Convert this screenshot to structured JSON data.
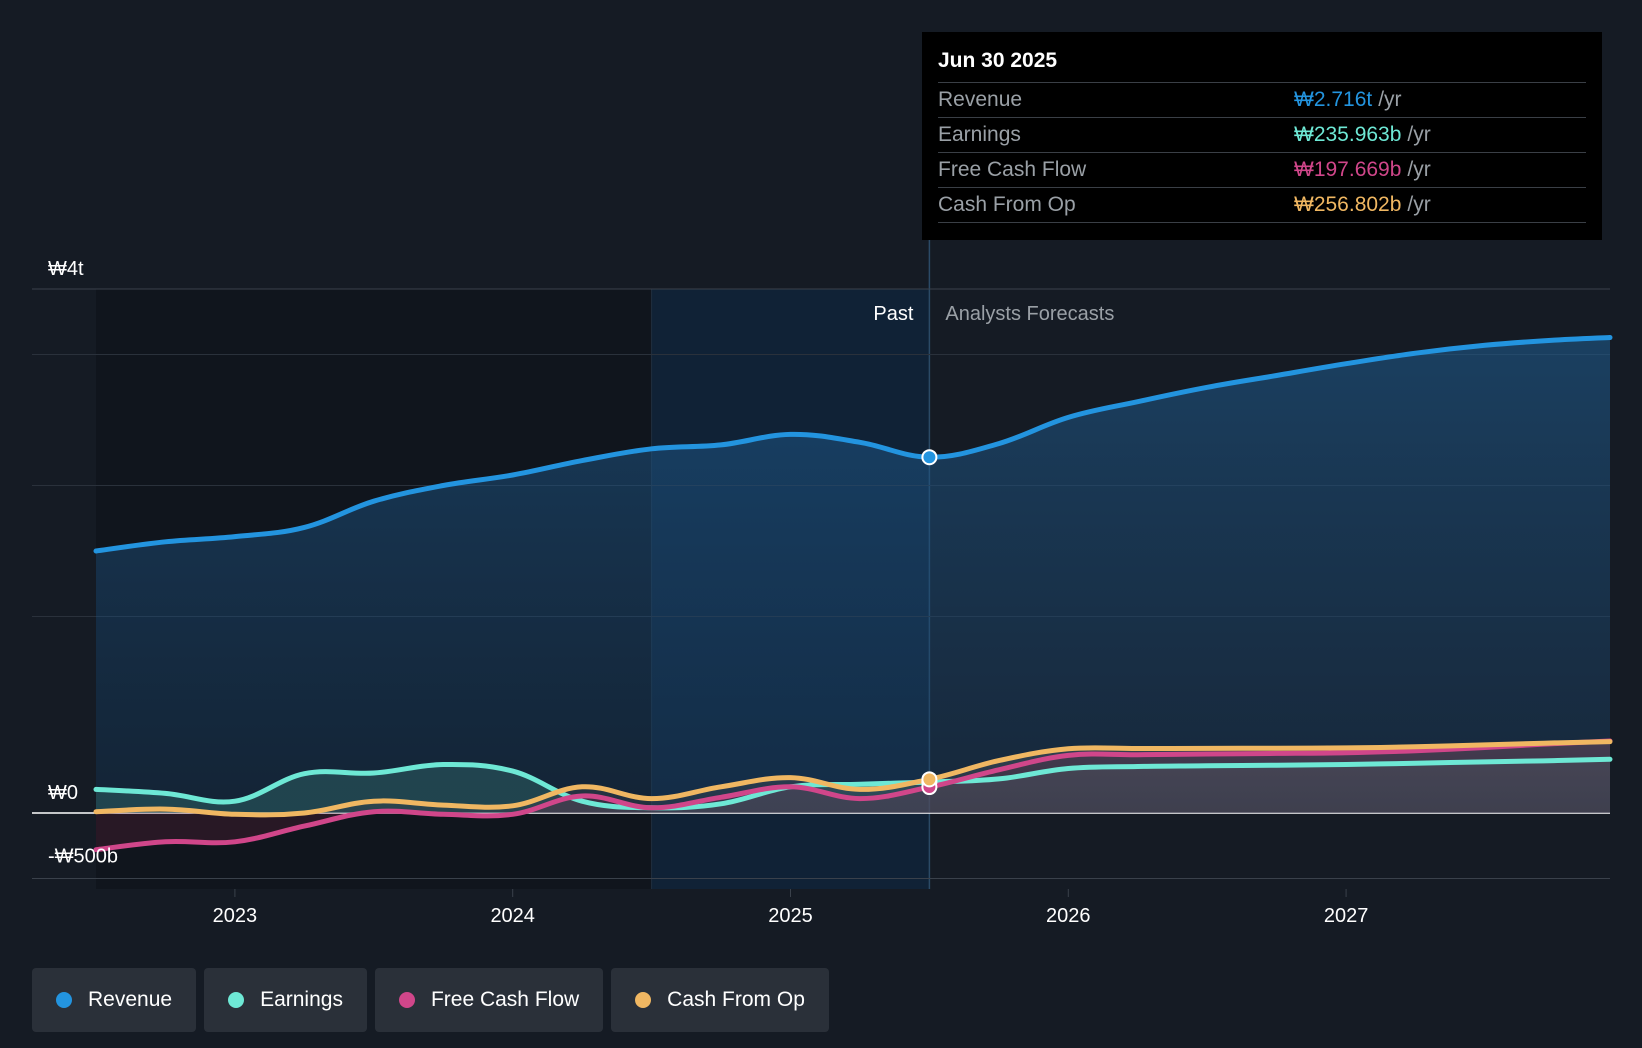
{
  "colors": {
    "revenue": "#2394df",
    "earnings": "#6ee8d5",
    "fcf": "#d0468a",
    "cfo": "#f0b762",
    "background": "#151b24"
  },
  "tooltip": {
    "date": "Jun 30 2025",
    "rows": [
      {
        "name": "Revenue",
        "value": "₩2.716t",
        "unit": "/yr"
      },
      {
        "name": "Earnings",
        "value": "₩235.963b",
        "unit": "/yr"
      },
      {
        "name": "Free Cash Flow",
        "value": "₩197.669b",
        "unit": "/yr"
      },
      {
        "name": "Cash From Op",
        "value": "₩256.802b",
        "unit": "/yr"
      }
    ]
  },
  "legend": [
    {
      "label": "Revenue",
      "color": "#2394df"
    },
    {
      "label": "Earnings",
      "color": "#6ee8d5"
    },
    {
      "label": "Free Cash Flow",
      "color": "#d0468a"
    },
    {
      "label": "Cash From Op",
      "color": "#f0b762"
    }
  ],
  "chart_data": {
    "type": "area",
    "title": "",
    "xlabel": "",
    "ylabel": "",
    "x_range": [
      2022.5,
      2027.95
    ],
    "y_range": [
      -500,
      4000
    ],
    "y_tick_labels": [
      {
        "value": 4000,
        "label": "₩4t"
      },
      {
        "value": 0,
        "label": "₩0"
      },
      {
        "value": -500,
        "label": "-₩500b"
      }
    ],
    "gridlines": [
      3500,
      2500,
      1500
    ],
    "x_ticks": [
      {
        "value": 2023,
        "label": "2023"
      },
      {
        "value": 2024,
        "label": "2024"
      },
      {
        "value": 2025,
        "label": "2025"
      },
      {
        "value": 2026,
        "label": "2026"
      },
      {
        "value": 2027,
        "label": "2027"
      }
    ],
    "past_label": "Past",
    "forecast_label": "Analysts Forecasts",
    "past_highlight_start": 2024.5,
    "divider_x": 2025.5,
    "series": [
      {
        "key": "revenue",
        "name": "Revenue",
        "points": [
          [
            2022.5,
            2000
          ],
          [
            2022.75,
            2070
          ],
          [
            2023.0,
            2110
          ],
          [
            2023.25,
            2180
          ],
          [
            2023.5,
            2380
          ],
          [
            2023.75,
            2500
          ],
          [
            2024.0,
            2580
          ],
          [
            2024.25,
            2690
          ],
          [
            2024.5,
            2780
          ],
          [
            2024.75,
            2810
          ],
          [
            2025.0,
            2890
          ],
          [
            2025.25,
            2830
          ],
          [
            2025.5,
            2716
          ],
          [
            2025.75,
            2820
          ],
          [
            2026.0,
            3020
          ],
          [
            2026.25,
            3140
          ],
          [
            2026.5,
            3250
          ],
          [
            2026.75,
            3340
          ],
          [
            2027.0,
            3430
          ],
          [
            2027.25,
            3510
          ],
          [
            2027.5,
            3570
          ],
          [
            2027.75,
            3610
          ],
          [
            2027.95,
            3630
          ]
        ]
      },
      {
        "key": "earnings",
        "name": "Earnings",
        "points": [
          [
            2022.5,
            180
          ],
          [
            2022.75,
            150
          ],
          [
            2023.0,
            90
          ],
          [
            2023.25,
            300
          ],
          [
            2023.5,
            305
          ],
          [
            2023.75,
            370
          ],
          [
            2024.0,
            320
          ],
          [
            2024.25,
            90
          ],
          [
            2024.5,
            40
          ],
          [
            2024.75,
            70
          ],
          [
            2025.0,
            200
          ],
          [
            2025.25,
            220
          ],
          [
            2025.5,
            236
          ],
          [
            2025.75,
            260
          ],
          [
            2026.0,
            340
          ],
          [
            2026.25,
            355
          ],
          [
            2026.5,
            360
          ],
          [
            2026.75,
            365
          ],
          [
            2027.0,
            370
          ],
          [
            2027.25,
            380
          ],
          [
            2027.5,
            390
          ],
          [
            2027.75,
            400
          ],
          [
            2027.95,
            410
          ]
        ]
      },
      {
        "key": "fcf",
        "name": "Free Cash Flow",
        "points": [
          [
            2022.5,
            -280
          ],
          [
            2022.75,
            -220
          ],
          [
            2023.0,
            -220
          ],
          [
            2023.25,
            -100
          ],
          [
            2023.5,
            10
          ],
          [
            2023.75,
            -10
          ],
          [
            2024.0,
            -10
          ],
          [
            2024.25,
            130
          ],
          [
            2024.5,
            40
          ],
          [
            2024.75,
            120
          ],
          [
            2025.0,
            200
          ],
          [
            2025.25,
            110
          ],
          [
            2025.5,
            198
          ],
          [
            2025.75,
            330
          ],
          [
            2026.0,
            440
          ],
          [
            2026.25,
            445
          ],
          [
            2026.5,
            450
          ],
          [
            2026.75,
            455
          ],
          [
            2027.0,
            460
          ],
          [
            2027.25,
            475
          ],
          [
            2027.5,
            500
          ],
          [
            2027.75,
            530
          ],
          [
            2027.95,
            550
          ]
        ]
      },
      {
        "key": "cfo",
        "name": "Cash From Op",
        "points": [
          [
            2022.5,
            10
          ],
          [
            2022.75,
            30
          ],
          [
            2023.0,
            -10
          ],
          [
            2023.25,
            0
          ],
          [
            2023.5,
            90
          ],
          [
            2023.75,
            60
          ],
          [
            2024.0,
            55
          ],
          [
            2024.25,
            200
          ],
          [
            2024.5,
            110
          ],
          [
            2024.75,
            200
          ],
          [
            2025.0,
            270
          ],
          [
            2025.25,
            180
          ],
          [
            2025.5,
            257
          ],
          [
            2025.75,
            400
          ],
          [
            2026.0,
            490
          ],
          [
            2026.25,
            492
          ],
          [
            2026.5,
            493
          ],
          [
            2026.75,
            495
          ],
          [
            2027.0,
            497
          ],
          [
            2027.25,
            505
          ],
          [
            2027.5,
            520
          ],
          [
            2027.75,
            535
          ],
          [
            2027.95,
            545
          ]
        ]
      }
    ],
    "highlight_x": 2025.5
  }
}
